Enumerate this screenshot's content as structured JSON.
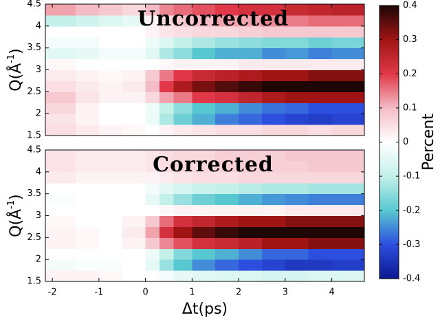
{
  "chart_data": [
    {
      "type": "heatmap",
      "title": "Uncorrected",
      "ylabel": {
        "text": "Q(Å",
        "sup": "-1",
        "tail": ")"
      },
      "xlim": [
        -2.15,
        4.7
      ],
      "ylim": [
        1.5,
        4.5
      ],
      "yticks": [
        1.5,
        2,
        2.5,
        3,
        3.5,
        4,
        4.5
      ],
      "xbins": [
        -2.15,
        -1.5,
        -1,
        -0.5,
        0,
        0.3,
        0.6,
        1,
        1.5,
        2,
        2.5,
        3,
        3.5,
        4,
        4.7
      ],
      "ybins": [
        1.5,
        1.75,
        2,
        2.25,
        2.5,
        2.75,
        3,
        3.25,
        3.5,
        3.75,
        4,
        4.25,
        4.5
      ],
      "z": [
        [
          0.05,
          0.03,
          0.02,
          0.01,
          0,
          0.02,
          0.03,
          0.04,
          0.05,
          0.05,
          0.06,
          0.06,
          0.05,
          0.06
        ],
        [
          0.04,
          0.02,
          0,
          0,
          -0.03,
          -0.12,
          -0.18,
          -0.22,
          -0.26,
          -0.28,
          -0.3,
          -0.32,
          -0.33,
          -0.32
        ],
        [
          0.06,
          0.02,
          0,
          0,
          -0.03,
          -0.1,
          -0.15,
          -0.2,
          -0.22,
          -0.25,
          -0.27,
          -0.28,
          -0.3,
          -0.3
        ],
        [
          0.08,
          0.04,
          0.02,
          0.02,
          0.06,
          0.12,
          0.15,
          0.2,
          0.22,
          0.25,
          0.28,
          0.3,
          0.3,
          0.3
        ],
        [
          0.05,
          0.03,
          0.02,
          0.03,
          0.1,
          0.2,
          0.28,
          0.33,
          0.36,
          0.38,
          0.4,
          0.4,
          0.4,
          0.4
        ],
        [
          0.03,
          0.02,
          0.01,
          0.02,
          0.08,
          0.15,
          0.2,
          0.24,
          0.26,
          0.28,
          0.3,
          0.3,
          0.32,
          0.32
        ],
        [
          0.01,
          0,
          0,
          0,
          0,
          0.01,
          0.02,
          0.02,
          0.02,
          0.03,
          0.03,
          0.03,
          0.03,
          0.03
        ],
        [
          -0.05,
          -0.04,
          -0.02,
          -0.02,
          -0.05,
          -0.12,
          -0.15,
          -0.2,
          -0.22,
          -0.22,
          -0.25,
          -0.24,
          -0.26,
          -0.25
        ],
        [
          -0.02,
          -0.02,
          0,
          0,
          -0.03,
          -0.06,
          -0.1,
          -0.12,
          -0.14,
          -0.15,
          -0.16,
          -0.16,
          -0.18,
          -0.17
        ],
        [
          0,
          0,
          0,
          0,
          0.02,
          0.04,
          0.05,
          0.06,
          0.06,
          0.07,
          0.08,
          0.08,
          0.08,
          0.08
        ],
        [
          -0.1,
          -0.08,
          -0.06,
          -0.04,
          0.02,
          0.06,
          0.08,
          0.1,
          0.12,
          0.12,
          0.14,
          0.15,
          0.16,
          0.16
        ],
        [
          0.12,
          0.1,
          0.08,
          0.06,
          0.1,
          0.14,
          0.16,
          0.18,
          0.2,
          0.22,
          0.22,
          0.24,
          0.25,
          0.26
        ]
      ],
      "colorbar": {
        "label": "Percent",
        "clim": [
          -0.4,
          0.4
        ],
        "ticks": [
          -0.4,
          -0.3,
          -0.2,
          -0.1,
          0,
          0.1,
          0.2,
          0.3,
          0.4
        ],
        "colors": [
          "#0c1890",
          "#2d4fe0",
          "#58c8d0",
          "#c4f0ea",
          "#ffffff",
          "#f4bcc6",
          "#e03848",
          "#a01414",
          "#1e0606"
        ]
      }
    },
    {
      "type": "heatmap",
      "title": "Corrected",
      "ylabel": {
        "text": "Q(Å",
        "sup": "-1",
        "tail": ")"
      },
      "xlabel": "Δt(ps)",
      "xlim": [
        -2.15,
        4.7
      ],
      "ylim": [
        1.5,
        4.5
      ],
      "yticks": [
        1.5,
        2,
        2.5,
        3,
        3.5,
        4,
        4.5
      ],
      "xticks": [
        -2,
        -1,
        0,
        1,
        2,
        3,
        4
      ],
      "xbins": [
        -2.15,
        -1.5,
        -1,
        -0.5,
        0,
        0.3,
        0.6,
        1,
        1.5,
        2,
        2.5,
        3,
        3.5,
        4,
        4.7
      ],
      "ybins": [
        1.5,
        1.75,
        2,
        2.25,
        2.5,
        2.75,
        3,
        3.25,
        3.5,
        3.75,
        4,
        4.25,
        4.5
      ],
      "z": [
        [
          0.02,
          0.02,
          0.01,
          0,
          0,
          -0.02,
          -0.04,
          -0.05,
          -0.06,
          -0.06,
          -0.07,
          -0.07,
          -0.06,
          -0.06
        ],
        [
          -0.02,
          -0.01,
          -0.01,
          0,
          -0.04,
          -0.14,
          -0.2,
          -0.25,
          -0.28,
          -0.3,
          -0.32,
          -0.34,
          -0.34,
          -0.33
        ],
        [
          0,
          0,
          0,
          0,
          -0.03,
          -0.1,
          -0.16,
          -0.2,
          -0.22,
          -0.25,
          -0.28,
          -0.28,
          -0.3,
          -0.3
        ],
        [
          0.02,
          0.01,
          0,
          0.02,
          0.08,
          0.14,
          0.18,
          0.22,
          0.24,
          0.26,
          0.3,
          0.3,
          0.32,
          0.32
        ],
        [
          0.02,
          0.01,
          0,
          0.03,
          0.12,
          0.22,
          0.3,
          0.35,
          0.38,
          0.4,
          0.4,
          0.4,
          0.4,
          0.4
        ],
        [
          0.01,
          0,
          0,
          0.02,
          0.08,
          0.16,
          0.22,
          0.25,
          0.28,
          0.3,
          0.3,
          0.32,
          0.32,
          0.32
        ],
        [
          0,
          0,
          0,
          0,
          0,
          0.01,
          0.02,
          0.02,
          0.02,
          0.02,
          0.02,
          0.03,
          0.03,
          0.03
        ],
        [
          -0.01,
          0,
          0,
          0,
          -0.04,
          -0.1,
          -0.14,
          -0.18,
          -0.2,
          -0.22,
          -0.24,
          -0.25,
          -0.26,
          -0.26
        ],
        [
          0,
          0,
          0,
          0,
          -0.02,
          -0.05,
          -0.07,
          -0.09,
          -0.1,
          -0.11,
          -0.12,
          -0.12,
          -0.13,
          -0.13
        ],
        [
          0.03,
          0.02,
          0.02,
          0.02,
          0.02,
          0.03,
          0.04,
          0.05,
          0.05,
          0.06,
          0.06,
          0.06,
          0.06,
          0.06
        ],
        [
          0.04,
          0.03,
          0.03,
          0.03,
          0.04,
          0.05,
          0.06,
          0.06,
          0.07,
          0.07,
          0.07,
          0.07,
          0.08,
          0.08
        ],
        [
          0.04,
          0.03,
          0.03,
          0.03,
          0.04,
          0.05,
          0.06,
          0.06,
          0.07,
          0.07,
          0.07,
          0.08,
          0.08,
          0.08
        ]
      ]
    }
  ]
}
